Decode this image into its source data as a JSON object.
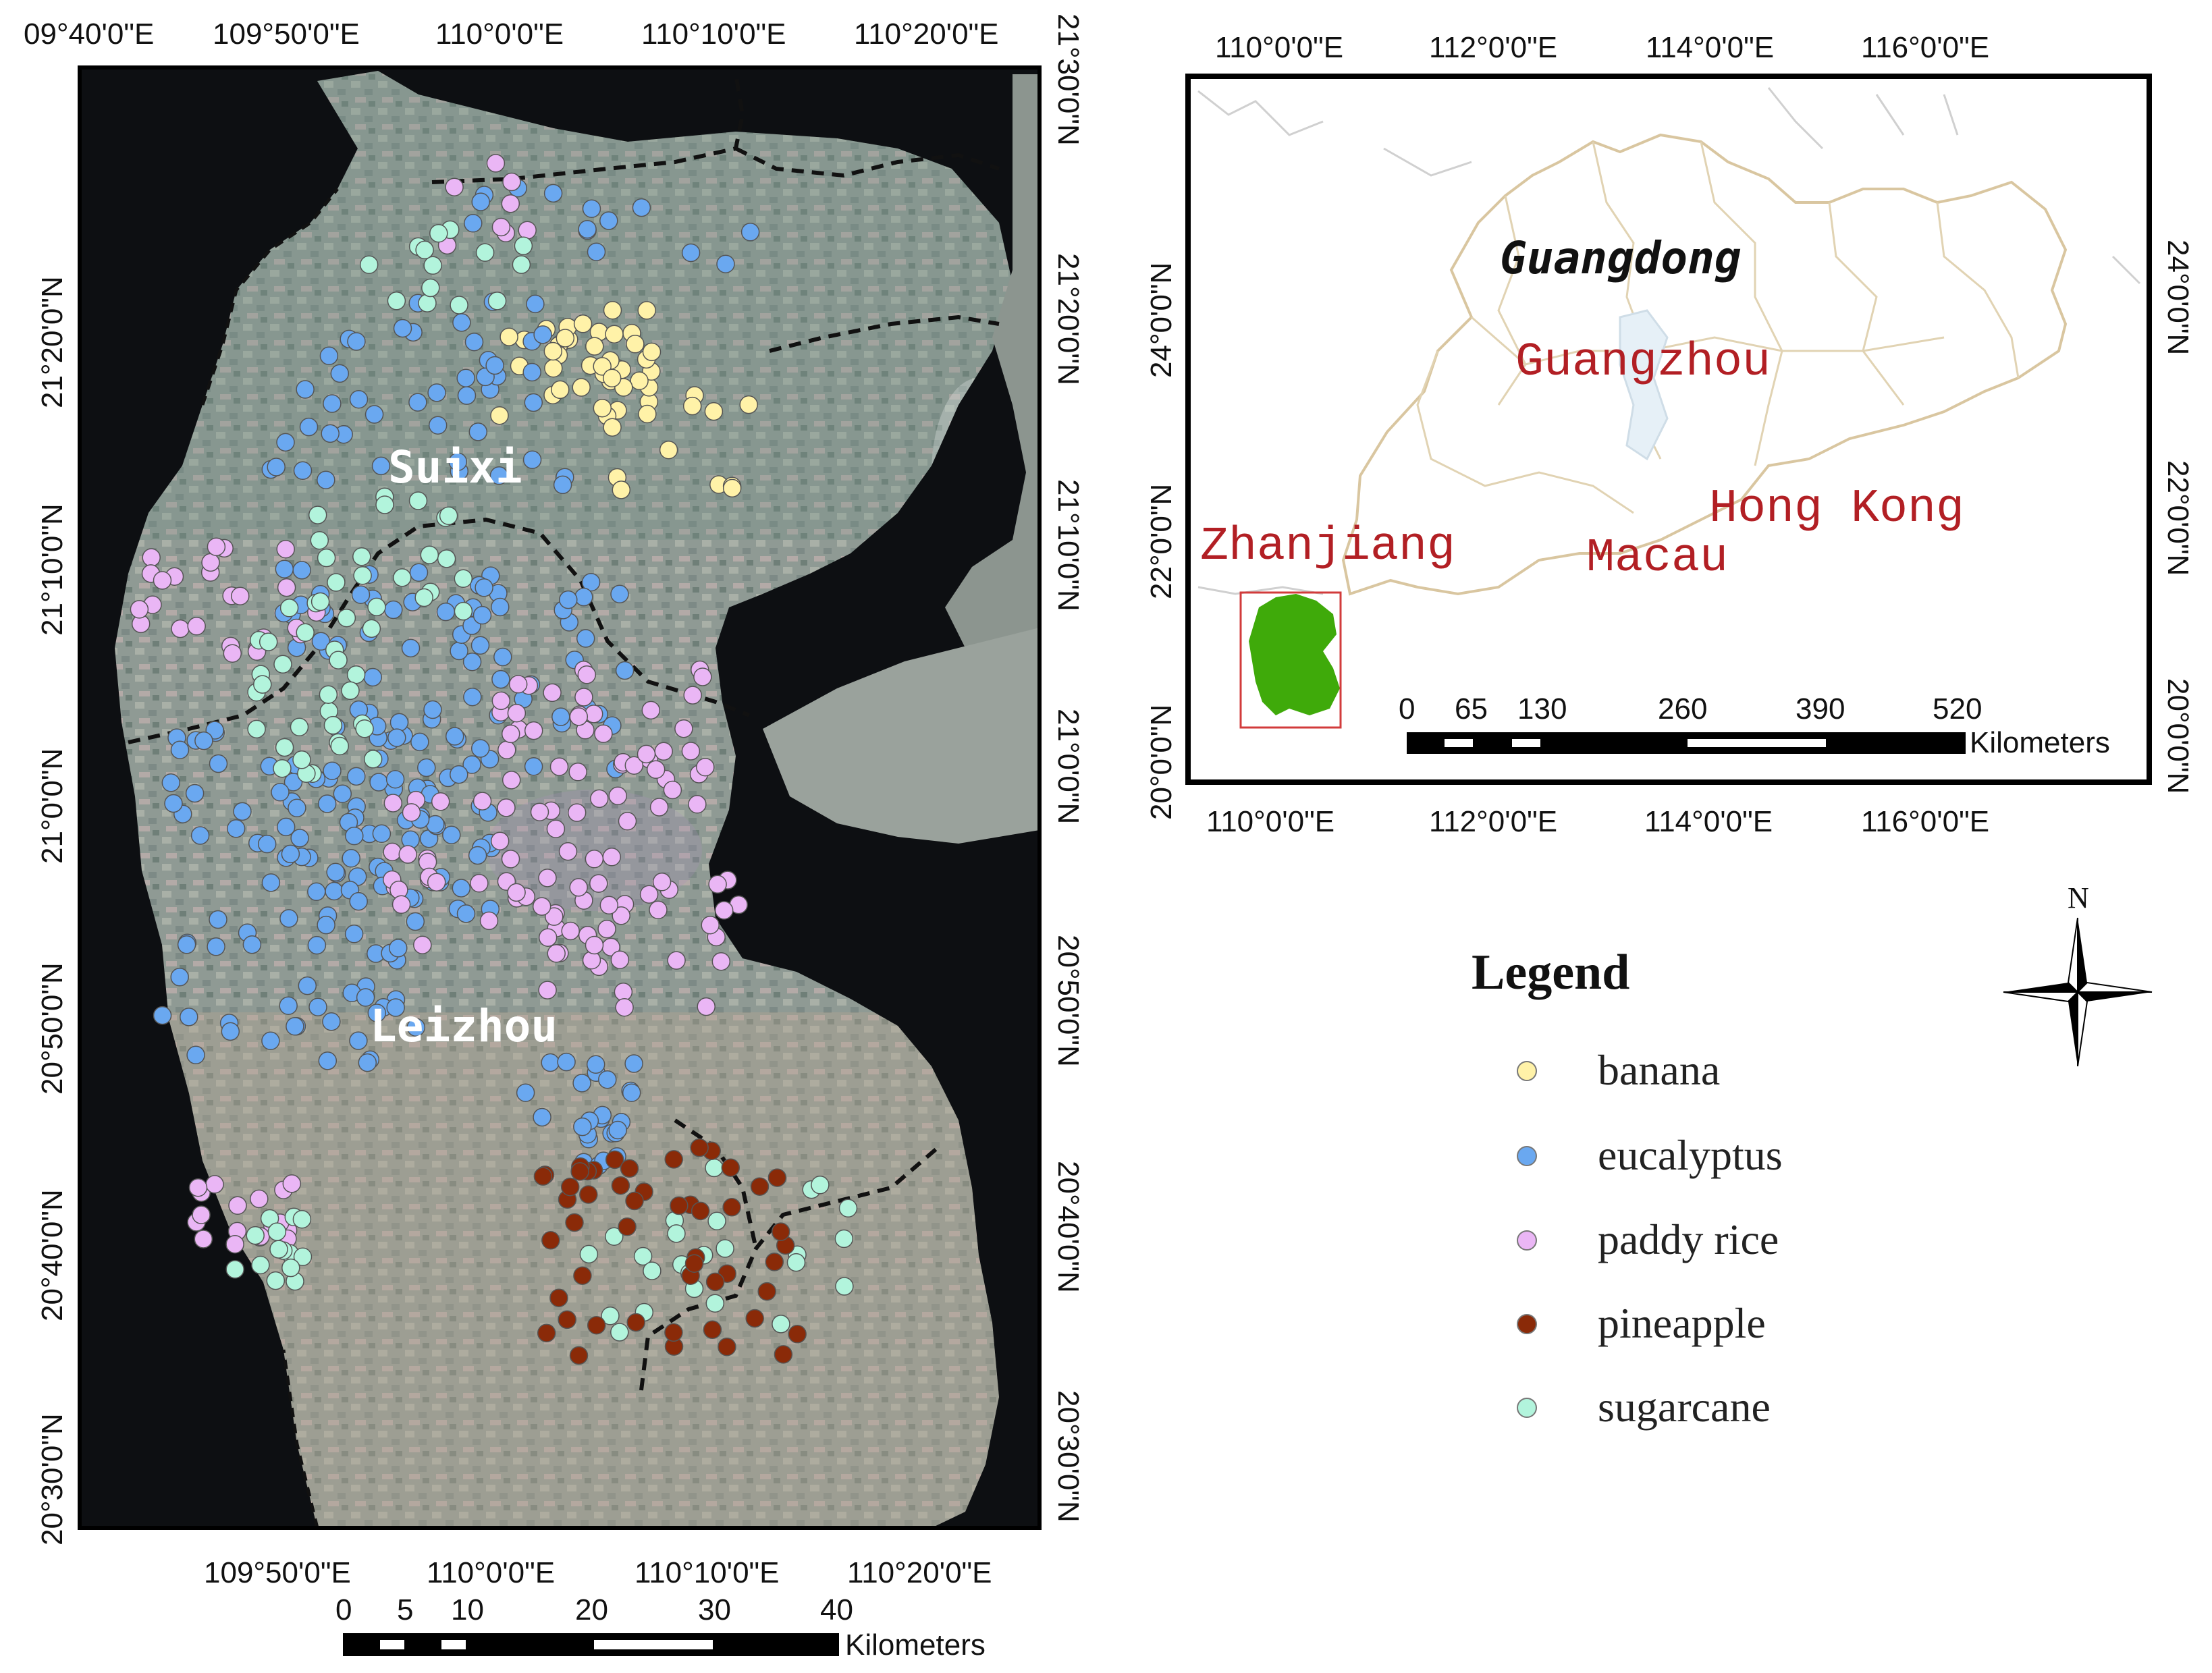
{
  "main_map": {
    "top_ticks": [
      "09°40'0\"E",
      "109°50'0\"E",
      "110°0'0\"E",
      "110°10'0\"E",
      "110°20'0\"E"
    ],
    "bottom_ticks": [
      "109°50'0\"E",
      "110°0'0\"E",
      "110°10'0\"E",
      "110°20'0\"E"
    ],
    "left_ticks": [
      "21°20'0\"N",
      "21°10'0\"N",
      "21°0'0\"N",
      "20°50'0\"N",
      "20°40'0\"N",
      "20°30'0\"N"
    ],
    "right_ticks": [
      "21°30'0\"N",
      "21°20'0\"N",
      "21°10'0\"N",
      "21°0'0\"N",
      "20°50'0\"N",
      "20°40'0\"N",
      "20°30'0\"N"
    ],
    "labels": {
      "north": "Suixi",
      "south": "Leizhou"
    },
    "scale": {
      "numbers": [
        "0",
        "5",
        "10",
        "20",
        "30",
        "40"
      ],
      "unit": "Kilometers"
    }
  },
  "inset_map": {
    "top_ticks": [
      "110°0'0\"E",
      "112°0'0\"E",
      "114°0'0\"E",
      "116°0'0\"E"
    ],
    "bottom_ticks": [
      "110°0'0\"E",
      "112°0'0\"E",
      "114°0'0\"E",
      "116°0'0\"E"
    ],
    "left_ticks": [
      "24°0'0\"N",
      "22°0'0\"N",
      "20°0'0\"N"
    ],
    "right_ticks": [
      "24°0'0\"N",
      "22°0'0\"N",
      "20°0'0\"N"
    ],
    "labels": {
      "province": "Guangdong",
      "guangzhou": "Guangzhou",
      "hongkong": "Hong Kong",
      "zhanjiang": "Zhanjiang",
      "macau": "Macau"
    },
    "scale": {
      "numbers": [
        "0",
        "65",
        "130",
        "260",
        "390",
        "520"
      ],
      "unit": "Kilometers"
    },
    "colors": {
      "study_area": "#3faa0a",
      "highlight_box": "#d23b3b",
      "boundaries": "#d9c6a0"
    }
  },
  "north_arrow": {
    "label": "N"
  },
  "legend": {
    "title": "Legend",
    "items": [
      {
        "label": "banana",
        "color": "#fff2a8"
      },
      {
        "label": "eucalyptus",
        "color": "#6aa8f0"
      },
      {
        "label": "paddy rice",
        "color": "#eab6f5"
      },
      {
        "label": "pineapple",
        "color": "#8a2a08"
      },
      {
        "label": "sugarcane",
        "color": "#b2f4dc"
      }
    ]
  }
}
